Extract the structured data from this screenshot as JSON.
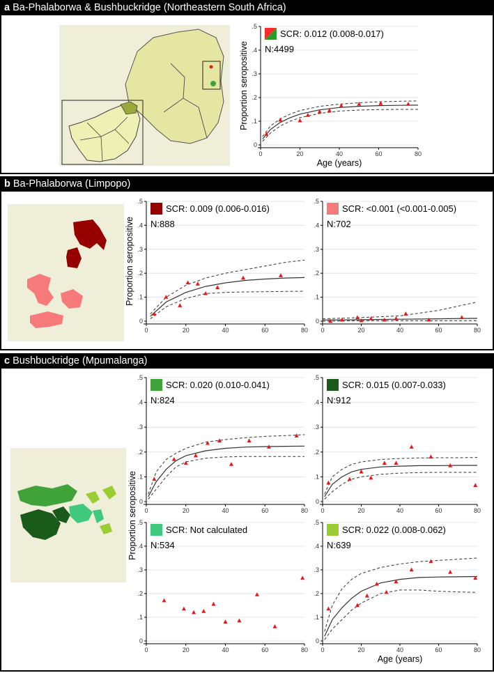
{
  "sections": {
    "a": {
      "letter": "a",
      "title": "Ba-Phalaborwa & Bushbuckridge (Northeastern South Africa)"
    },
    "b": {
      "letter": "b",
      "title": "Ba-Phalaborwa (Limpopo)"
    },
    "c": {
      "letter": "c",
      "title": "Bushbuckridge (Mpumalanga)"
    }
  },
  "map_colors": {
    "province": "#e9e9a6",
    "country": "#eef0b4",
    "ba_phalaborwa_dark": "#960000",
    "ba_phalaborwa_light": "#f77a7a",
    "bushbuckridge_1": "#3fa33a",
    "bushbuckridge_2": "#1a5a1a",
    "bushbuckridge_3": "#3fc97c",
    "bushbuckridge_4": "#9acd32"
  },
  "chart_data": [
    {
      "id": "a",
      "type": "scatter",
      "swatch": [
        "#ff2a2a",
        "#2a9a2a"
      ],
      "legend_scr": "SCR: 0.012 (0.008-0.017)",
      "legend_n": "N:4499",
      "xlabel": "Age (years)",
      "ylabel": "Proportion seropositive",
      "xlim": [
        0,
        80
      ],
      "ylim": [
        0,
        0.5
      ],
      "xticks": [
        "0",
        "20",
        "40",
        "60",
        "80"
      ],
      "yticks": [
        "0",
        ".1",
        ".2",
        ".3",
        ".4",
        ".5"
      ],
      "points": [
        [
          3,
          0.045
        ],
        [
          10,
          0.105
        ],
        [
          20,
          0.102
        ],
        [
          24,
          0.125
        ],
        [
          30,
          0.14
        ],
        [
          35,
          0.145
        ],
        [
          41,
          0.165
        ],
        [
          50,
          0.172
        ],
        [
          61,
          0.175
        ],
        [
          75,
          0.172
        ]
      ],
      "fit": [
        [
          1,
          0.025
        ],
        [
          5,
          0.065
        ],
        [
          10,
          0.095
        ],
        [
          15,
          0.115
        ],
        [
          20,
          0.13
        ],
        [
          30,
          0.148
        ],
        [
          40,
          0.158
        ],
        [
          50,
          0.163
        ],
        [
          60,
          0.166
        ],
        [
          70,
          0.167
        ],
        [
          80,
          0.168
        ]
      ],
      "upper": [
        [
          1,
          0.035
        ],
        [
          5,
          0.08
        ],
        [
          10,
          0.11
        ],
        [
          15,
          0.13
        ],
        [
          20,
          0.145
        ],
        [
          30,
          0.163
        ],
        [
          40,
          0.172
        ],
        [
          50,
          0.178
        ],
        [
          60,
          0.182
        ],
        [
          70,
          0.184
        ],
        [
          80,
          0.186
        ]
      ],
      "lower": [
        [
          1,
          0.015
        ],
        [
          5,
          0.05
        ],
        [
          10,
          0.08
        ],
        [
          15,
          0.1
        ],
        [
          20,
          0.115
        ],
        [
          30,
          0.133
        ],
        [
          40,
          0.143
        ],
        [
          50,
          0.147
        ],
        [
          60,
          0.149
        ],
        [
          70,
          0.15
        ],
        [
          80,
          0.15
        ]
      ]
    },
    {
      "id": "b1",
      "type": "scatter",
      "swatch": [
        "#960000"
      ],
      "legend_scr": "SCR: 0.009 (0.006-0.016)",
      "legend_n": "N:888",
      "xlabel": "",
      "ylabel": "Proportion seropositive",
      "xlim": [
        0,
        80
      ],
      "ylim": [
        0,
        0.5
      ],
      "xticks": [
        "0",
        "20",
        "40",
        "60",
        "80"
      ],
      "yticks": [
        "0",
        ".1",
        ".2",
        ".3",
        ".4",
        ".5"
      ],
      "points": [
        [
          4,
          0.03
        ],
        [
          10,
          0.1
        ],
        [
          17,
          0.065
        ],
        [
          21,
          0.16
        ],
        [
          26,
          0.155
        ],
        [
          30,
          0.115
        ],
        [
          36,
          0.14
        ],
        [
          49,
          0.18
        ],
        [
          68,
          0.19
        ]
      ],
      "fit": [
        [
          2,
          0.02
        ],
        [
          10,
          0.08
        ],
        [
          20,
          0.12
        ],
        [
          30,
          0.145
        ],
        [
          40,
          0.16
        ],
        [
          50,
          0.17
        ],
        [
          60,
          0.176
        ],
        [
          70,
          0.18
        ],
        [
          80,
          0.182
        ]
      ],
      "upper": [
        [
          2,
          0.03
        ],
        [
          10,
          0.1
        ],
        [
          20,
          0.15
        ],
        [
          30,
          0.18
        ],
        [
          40,
          0.2
        ],
        [
          50,
          0.215
        ],
        [
          60,
          0.23
        ],
        [
          70,
          0.245
        ],
        [
          80,
          0.255
        ]
      ],
      "lower": [
        [
          2,
          0.01
        ],
        [
          10,
          0.06
        ],
        [
          20,
          0.095
        ],
        [
          30,
          0.115
        ],
        [
          40,
          0.12
        ],
        [
          50,
          0.122
        ],
        [
          60,
          0.123
        ],
        [
          70,
          0.124
        ],
        [
          80,
          0.125
        ]
      ]
    },
    {
      "id": "b2",
      "type": "scatter",
      "swatch": [
        "#f77a7a"
      ],
      "legend_scr": "SCR: <0.001 (<0.001-0.005)",
      "legend_n": "N:702",
      "xlabel": "",
      "ylabel": "",
      "xlim": [
        0,
        80
      ],
      "ylim": [
        0,
        0.5
      ],
      "xticks": [
        "0",
        "20",
        "40",
        "60",
        "80"
      ],
      "yticks": [
        "0",
        ".1",
        ".2",
        ".3",
        ".4",
        ".5"
      ],
      "points": [
        [
          4,
          0.0
        ],
        [
          10,
          0.005
        ],
        [
          18,
          0.015
        ],
        [
          20,
          0.002
        ],
        [
          25,
          0.01
        ],
        [
          32,
          0.005
        ],
        [
          38,
          0.01
        ],
        [
          43,
          0.03
        ],
        [
          55,
          0.005
        ],
        [
          72,
          0.015
        ]
      ],
      "fit": [
        [
          0,
          0.005
        ],
        [
          20,
          0.006
        ],
        [
          40,
          0.008
        ],
        [
          60,
          0.01
        ],
        [
          80,
          0.012
        ]
      ],
      "upper": [
        [
          0,
          0.01
        ],
        [
          20,
          0.015
        ],
        [
          40,
          0.022
        ],
        [
          60,
          0.045
        ],
        [
          80,
          0.08
        ]
      ],
      "lower": [
        [
          0,
          0.0
        ],
        [
          20,
          0.002
        ],
        [
          40,
          0.002
        ],
        [
          60,
          0.002
        ],
        [
          80,
          0.002
        ]
      ]
    },
    {
      "id": "c1",
      "type": "scatter",
      "swatch": [
        "#3fa33a"
      ],
      "legend_scr": "SCR: 0.020 (0.010-0.041)",
      "legend_n": "N:824",
      "xlabel": "",
      "ylabel": "",
      "xlim": [
        0,
        80
      ],
      "ylim": [
        0,
        0.5
      ],
      "xticks": [
        "0",
        "20",
        "40",
        "60",
        "80"
      ],
      "yticks": [
        "0",
        ".1",
        ".2",
        ".3",
        ".4",
        ".5"
      ],
      "points": [
        [
          4,
          0.09
        ],
        [
          14,
          0.17
        ],
        [
          20,
          0.155
        ],
        [
          25,
          0.185
        ],
        [
          31,
          0.235
        ],
        [
          37,
          0.245
        ],
        [
          43,
          0.15
        ],
        [
          52,
          0.245
        ],
        [
          62,
          0.22
        ],
        [
          76,
          0.265
        ]
      ],
      "fit": [
        [
          1,
          0.02
        ],
        [
          5,
          0.08
        ],
        [
          10,
          0.13
        ],
        [
          15,
          0.165
        ],
        [
          20,
          0.185
        ],
        [
          30,
          0.205
        ],
        [
          40,
          0.215
        ],
        [
          50,
          0.22
        ],
        [
          60,
          0.222
        ],
        [
          70,
          0.223
        ],
        [
          80,
          0.224
        ]
      ],
      "upper": [
        [
          1,
          0.03
        ],
        [
          5,
          0.12
        ],
        [
          10,
          0.17
        ],
        [
          15,
          0.195
        ],
        [
          20,
          0.215
        ],
        [
          30,
          0.24
        ],
        [
          40,
          0.25
        ],
        [
          50,
          0.258
        ],
        [
          60,
          0.263
        ],
        [
          70,
          0.266
        ],
        [
          80,
          0.27
        ]
      ],
      "lower": [
        [
          1,
          0.01
        ],
        [
          5,
          0.05
        ],
        [
          10,
          0.1
        ],
        [
          15,
          0.14
        ],
        [
          20,
          0.16
        ],
        [
          30,
          0.175
        ],
        [
          40,
          0.18
        ],
        [
          50,
          0.182
        ],
        [
          60,
          0.182
        ],
        [
          70,
          0.182
        ],
        [
          80,
          0.182
        ]
      ]
    },
    {
      "id": "c2",
      "type": "scatter",
      "swatch": [
        "#1a5a1a"
      ],
      "legend_scr": "SCR: 0.015 (0.007-0.033)",
      "legend_n": "N:912",
      "xlabel": "",
      "ylabel": "",
      "xlim": [
        0,
        80
      ],
      "ylim": [
        0,
        0.5
      ],
      "xticks": [
        "0",
        "20",
        "40",
        "60",
        "80"
      ],
      "yticks": [
        "0",
        ".1",
        ".2",
        ".3",
        ".4",
        ".5"
      ],
      "points": [
        [
          3,
          0.075
        ],
        [
          14,
          0.09
        ],
        [
          20,
          0.12
        ],
        [
          25,
          0.095
        ],
        [
          32,
          0.155
        ],
        [
          38,
          0.155
        ],
        [
          46,
          0.22
        ],
        [
          56,
          0.18
        ],
        [
          66,
          0.145
        ],
        [
          79,
          0.065
        ]
      ],
      "fit": [
        [
          1,
          0.02
        ],
        [
          5,
          0.07
        ],
        [
          10,
          0.1
        ],
        [
          15,
          0.12
        ],
        [
          20,
          0.13
        ],
        [
          30,
          0.14
        ],
        [
          40,
          0.143
        ],
        [
          50,
          0.145
        ],
        [
          60,
          0.145
        ],
        [
          70,
          0.146
        ],
        [
          80,
          0.146
        ]
      ],
      "upper": [
        [
          1,
          0.03
        ],
        [
          5,
          0.1
        ],
        [
          10,
          0.13
        ],
        [
          15,
          0.15
        ],
        [
          20,
          0.16
        ],
        [
          30,
          0.17
        ],
        [
          40,
          0.174
        ],
        [
          50,
          0.176
        ],
        [
          60,
          0.177
        ],
        [
          70,
          0.177
        ],
        [
          80,
          0.178
        ]
      ],
      "lower": [
        [
          1,
          0.01
        ],
        [
          5,
          0.04
        ],
        [
          10,
          0.07
        ],
        [
          15,
          0.09
        ],
        [
          20,
          0.1
        ],
        [
          30,
          0.11
        ],
        [
          40,
          0.115
        ],
        [
          50,
          0.117
        ],
        [
          60,
          0.118
        ],
        [
          70,
          0.118
        ],
        [
          80,
          0.118
        ]
      ]
    },
    {
      "id": "c3",
      "type": "scatter",
      "swatch": [
        "#3fc97c"
      ],
      "legend_scr": "SCR: Not calculated",
      "legend_n": "N:534",
      "xlabel": "",
      "ylabel": "",
      "xlim": [
        0,
        80
      ],
      "ylim": [
        0,
        0.5
      ],
      "xticks": [
        "0",
        "20",
        "40",
        "60",
        "80"
      ],
      "yticks": [
        "0",
        ".1",
        ".2",
        ".3",
        ".4",
        ".5"
      ],
      "points": [
        [
          9,
          0.17
        ],
        [
          19,
          0.135
        ],
        [
          24,
          0.12
        ],
        [
          29,
          0.125
        ],
        [
          34,
          0.155
        ],
        [
          40,
          0.08
        ],
        [
          47,
          0.085
        ],
        [
          56,
          0.195
        ],
        [
          65,
          0.06
        ],
        [
          79,
          0.265
        ]
      ],
      "fit": [],
      "upper": [],
      "lower": []
    },
    {
      "id": "c4",
      "type": "scatter",
      "swatch": [
        "#9acd32"
      ],
      "legend_scr": "SCR: 0.022 (0.008-0.062)",
      "legend_n": "N:639",
      "xlabel": "Age (years)",
      "ylabel": "",
      "xlim": [
        0,
        80
      ],
      "ylim": [
        0,
        0.5
      ],
      "xticks": [
        "0",
        "20",
        "40",
        "60",
        "80"
      ],
      "yticks": [
        "0",
        ".1",
        ".2",
        ".3",
        ".4",
        ".5"
      ],
      "points": [
        [
          3,
          0.135
        ],
        [
          18,
          0.15
        ],
        [
          23,
          0.19
        ],
        [
          28,
          0.24
        ],
        [
          33,
          0.205
        ],
        [
          38,
          0.25
        ],
        [
          46,
          0.3
        ],
        [
          56,
          0.335
        ],
        [
          66,
          0.29
        ],
        [
          79,
          0.265
        ]
      ],
      "fit": [
        [
          1,
          0.02
        ],
        [
          5,
          0.09
        ],
        [
          10,
          0.14
        ],
        [
          15,
          0.18
        ],
        [
          20,
          0.21
        ],
        [
          30,
          0.245
        ],
        [
          40,
          0.26
        ],
        [
          50,
          0.268
        ],
        [
          60,
          0.27
        ],
        [
          70,
          0.271
        ],
        [
          80,
          0.272
        ]
      ],
      "upper": [
        [
          1,
          0.04
        ],
        [
          5,
          0.15
        ],
        [
          10,
          0.22
        ],
        [
          15,
          0.26
        ],
        [
          20,
          0.285
        ],
        [
          30,
          0.31
        ],
        [
          40,
          0.325
        ],
        [
          50,
          0.335
        ],
        [
          60,
          0.34
        ],
        [
          70,
          0.345
        ],
        [
          80,
          0.35
        ]
      ],
      "lower": [
        [
          1,
          0.005
        ],
        [
          5,
          0.05
        ],
        [
          10,
          0.09
        ],
        [
          15,
          0.13
        ],
        [
          20,
          0.16
        ],
        [
          30,
          0.2
        ],
        [
          40,
          0.215
        ],
        [
          50,
          0.215
        ],
        [
          60,
          0.21
        ],
        [
          70,
          0.207
        ],
        [
          80,
          0.205
        ]
      ]
    }
  ],
  "shared_labels": {
    "ylabel_c": "Proportion seropositive",
    "xlabel_c": "Age (years)"
  }
}
